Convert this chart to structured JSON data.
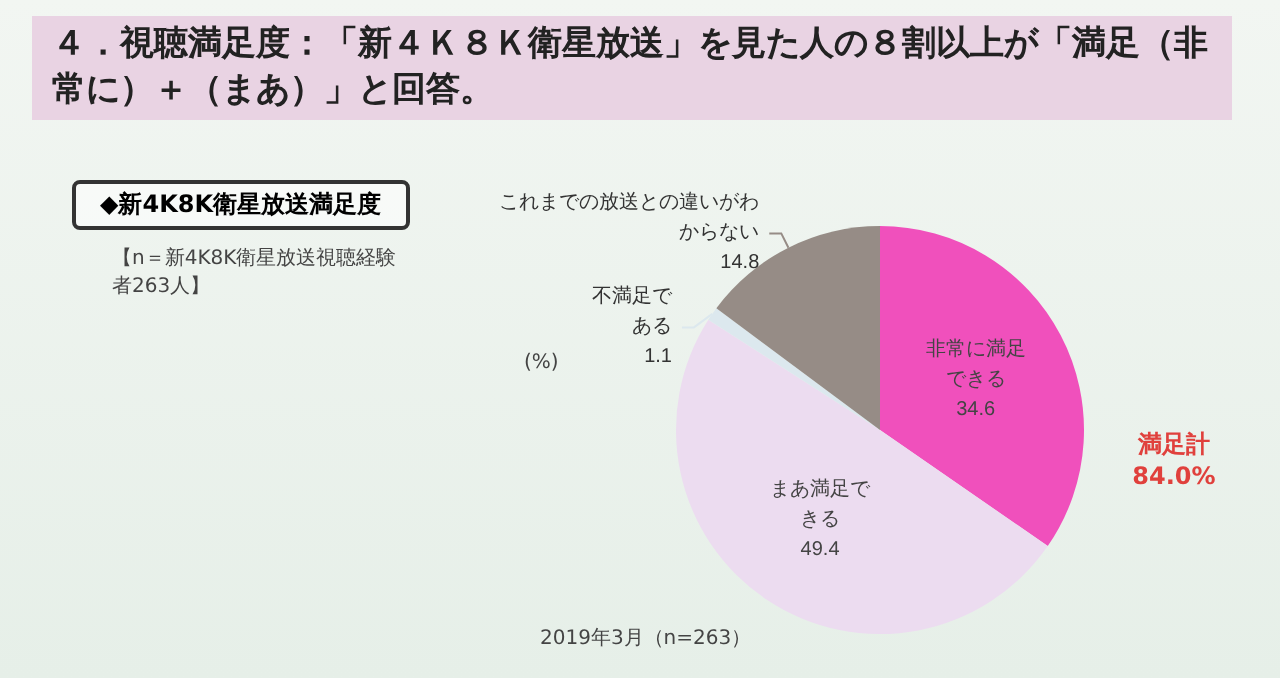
{
  "chart_data": {
    "type": "pie",
    "title": "４．視聴満足度：「新４Ｋ８Ｋ衛星放送」を見た人の８割以上が「満足（非常に）＋（まあ）」と回答。",
    "subtitle": "◆新4K8K衛星放送満足度",
    "categories": [
      "非常に満足できる",
      "まあ満足できる",
      "不満足である",
      "これまでの放送との違いがわからない"
    ],
    "values": [
      34.6,
      49.4,
      1.1,
      14.8
    ],
    "colors": [
      "#f050bc",
      "#ecdcf0",
      "#dce8ee",
      "#968c86"
    ],
    "data_labels": true,
    "legend": false,
    "annotations": [
      "【n＝新4K8K衛星放送視聴経験者263人】",
      "(%)",
      "2019年3月（n=263）",
      "満足計 84.0%"
    ]
  }
}
